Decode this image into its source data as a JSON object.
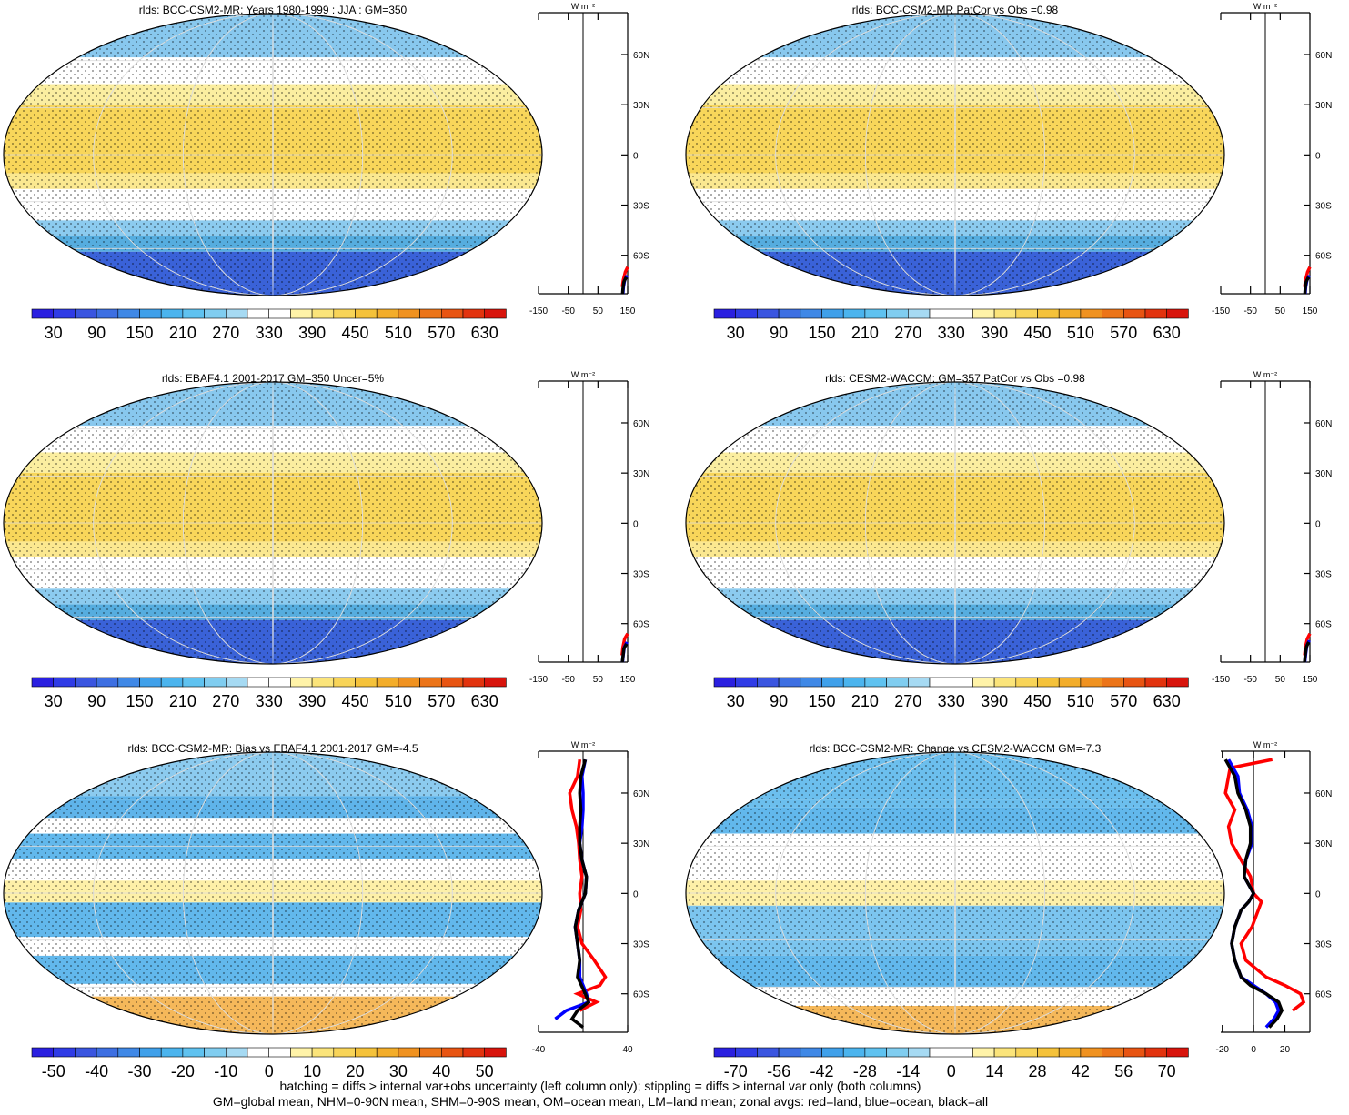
{
  "panels": [
    {
      "title": "rlds: BCC-CSM2-MR: Years 1980-1999 : JJA : GM=350",
      "map": "mean",
      "colorbar": [
        30,
        90,
        150,
        210,
        270,
        330,
        390,
        450,
        510,
        570,
        630
      ],
      "zonal": {
        "unit": "W m⁻²",
        "xlim": [
          -150,
          150
        ],
        "xticks": [
          -150,
          -50,
          50,
          150
        ],
        "ylim": [
          -83,
          85
        ],
        "yticks": [
          {
            "value": 60,
            "label": "60N"
          },
          {
            "value": 30,
            "label": "30N"
          },
          0,
          {
            "value": -30,
            "label": "30S"
          },
          {
            "value": -60,
            "label": "60S"
          }
        ],
        "series": [
          {
            "name": "land",
            "color": "#ff0000",
            "lat": [
              -67,
              -70,
              -75,
              -79
            ],
            "values": [
              150,
              142,
              135,
              132
            ]
          },
          {
            "name": "ocean",
            "color": "#0000ff",
            "lat": [
              -72,
              -75,
              -79,
              -83
            ],
            "values": [
              148,
              140,
              136,
              134
            ]
          },
          {
            "name": "all",
            "color": "#000000",
            "lat": [
              -73,
              -76,
              -80,
              -83
            ],
            "values": [
              145,
              137,
              134,
              133
            ]
          }
        ]
      }
    },
    {
      "title": "rlds: BCC-CSM2-MR PatCor vs Obs =0.98",
      "map": "mean",
      "colorbar": [
        30,
        90,
        150,
        210,
        270,
        330,
        390,
        450,
        510,
        570,
        630
      ],
      "zonal": {
        "unit": "W m⁻²",
        "xlim": [
          -150,
          150
        ],
        "xticks": [
          -150,
          -50,
          50,
          150
        ],
        "ylim": [
          -83,
          85
        ],
        "yticks": [
          {
            "value": 60,
            "label": "60N"
          },
          {
            "value": 30,
            "label": "30N"
          },
          0,
          {
            "value": -30,
            "label": "30S"
          },
          {
            "value": -60,
            "label": "60S"
          }
        ],
        "series": [
          {
            "name": "land",
            "color": "#ff0000",
            "lat": [
              -67,
              -70,
              -75,
              -79
            ],
            "values": [
              150,
              142,
              135,
              132
            ]
          },
          {
            "name": "ocean",
            "color": "#0000ff",
            "lat": [
              -72,
              -75,
              -79,
              -83
            ],
            "values": [
              148,
              140,
              136,
              134
            ]
          },
          {
            "name": "all",
            "color": "#000000",
            "lat": [
              -73,
              -76,
              -80,
              -83
            ],
            "values": [
              145,
              137,
              134,
              133
            ]
          }
        ]
      }
    },
    {
      "title": "rlds: EBAF4.1 2001-2017 GM=350 Uncer=5%",
      "map": "mean",
      "colorbar": [
        30,
        90,
        150,
        210,
        270,
        330,
        390,
        450,
        510,
        570,
        630
      ],
      "zonal": {
        "unit": "W m⁻²",
        "xlim": [
          -150,
          150
        ],
        "xticks": [
          -150,
          -50,
          50,
          150
        ],
        "ylim": [
          -83,
          85
        ],
        "yticks": [
          {
            "value": 60,
            "label": "60N"
          },
          {
            "value": 30,
            "label": "30N"
          },
          0,
          {
            "value": -30,
            "label": "30S"
          },
          {
            "value": -60,
            "label": "60S"
          }
        ],
        "series": [
          {
            "name": "land",
            "color": "#ff0000",
            "lat": [
              -66,
              -69,
              -74,
              -79
            ],
            "values": [
              150,
              140,
              134,
              131
            ]
          },
          {
            "name": "ocean",
            "color": "#0000ff",
            "lat": [
              -71,
              -74,
              -79,
              -83
            ],
            "values": [
              148,
              139,
              135,
              133
            ]
          },
          {
            "name": "all",
            "color": "#000000",
            "lat": [
              -72,
              -75,
              -80,
              -83
            ],
            "values": [
              146,
              137,
              134,
              132
            ]
          }
        ]
      }
    },
    {
      "title": "rlds: CESM2-WACCM: GM=357 PatCor vs Obs =0.98",
      "map": "mean",
      "colorbar": [
        30,
        90,
        150,
        210,
        270,
        330,
        390,
        450,
        510,
        570,
        630
      ],
      "zonal": {
        "unit": "W m⁻²",
        "xlim": [
          -150,
          150
        ],
        "xticks": [
          -150,
          -50,
          50,
          150
        ],
        "ylim": [
          -83,
          85
        ],
        "yticks": [
          {
            "value": 60,
            "label": "60N"
          },
          {
            "value": 30,
            "label": "30N"
          },
          0,
          {
            "value": -30,
            "label": "30S"
          },
          {
            "value": -60,
            "label": "60S"
          }
        ],
        "series": [
          {
            "name": "land",
            "color": "#ff0000",
            "lat": [
              -66,
              -69,
              -74,
              -79
            ],
            "values": [
              150,
              141,
              135,
              132
            ]
          },
          {
            "name": "ocean",
            "color": "#0000ff",
            "lat": [
              -70,
              -73,
              -78,
              -83
            ],
            "values": [
              148,
              140,
              136,
              133
            ]
          },
          {
            "name": "all",
            "color": "#000000",
            "lat": [
              -71,
              -74,
              -79,
              -83
            ],
            "values": [
              146,
              138,
              134,
              132
            ]
          }
        ]
      }
    },
    {
      "title": "rlds: BCC-CSM2-MR: Bias vs EBAF4.1 2001-2017 GM=-4.5",
      "map": "bias",
      "colorbar": [
        -50,
        -40,
        -30,
        -20,
        -10,
        0,
        10,
        20,
        30,
        40,
        50
      ],
      "zonal": {
        "unit": "W m⁻²",
        "xlim": [
          -40,
          40
        ],
        "xticks": [
          -40,
          40
        ],
        "ylim": [
          -83,
          85
        ],
        "yticks": [
          {
            "value": 60,
            "label": "60N"
          },
          {
            "value": 30,
            "label": "30N"
          },
          0,
          {
            "value": -30,
            "label": "30S"
          },
          {
            "value": -60,
            "label": "60S"
          }
        ],
        "series": [
          {
            "name": "land",
            "color": "#ff0000",
            "lat": [
              80,
              70,
              60,
              50,
              40,
              30,
              20,
              10,
              0,
              -10,
              -20,
              -30,
              -40,
              -50,
              -55,
              -60,
              -65,
              -70
            ],
            "values": [
              -3,
              -5,
              -12,
              -10,
              -6,
              -4,
              -3,
              -1,
              -3,
              -2,
              -5,
              -1,
              10,
              20,
              15,
              -5,
              12,
              -3
            ]
          },
          {
            "name": "ocean",
            "color": "#0000ff",
            "lat": [
              80,
              70,
              60,
              50,
              40,
              30,
              20,
              10,
              0,
              -10,
              -20,
              -30,
              -40,
              -50,
              -60,
              -65,
              -70,
              -75
            ],
            "values": [
              2,
              -1,
              0,
              0,
              -1,
              -3,
              -1,
              3,
              2,
              -4,
              -7,
              -5,
              -3,
              -3,
              3,
              5,
              -15,
              -25
            ]
          },
          {
            "name": "all",
            "color": "#000000",
            "lat": [
              80,
              70,
              60,
              50,
              40,
              30,
              20,
              10,
              0,
              -10,
              -20,
              -30,
              -40,
              -50,
              -60,
              -65,
              -70,
              -75,
              -80
            ],
            "values": [
              2,
              -2,
              -3,
              -2,
              -3,
              -3,
              -1,
              3,
              2,
              -4,
              -7,
              -5,
              -3,
              -5,
              2,
              5,
              -5,
              -10,
              0
            ]
          }
        ]
      }
    },
    {
      "title": "rlds: BCC-CSM2-MR: Change vs CESM2-WACCM GM=-7.3",
      "map": "change",
      "colorbar": [
        -70,
        -56,
        -42,
        -28,
        -14,
        0,
        14,
        28,
        42,
        56,
        70
      ],
      "zonal": {
        "unit": "W m⁻²",
        "xlim": [
          -21,
          36
        ],
        "xticks": [
          -20,
          0,
          20
        ],
        "ylim": [
          -83,
          85
        ],
        "yticks": [
          {
            "value": 60,
            "label": "60N"
          },
          {
            "value": 30,
            "label": "30N"
          },
          0,
          {
            "value": -30,
            "label": "30S"
          },
          {
            "value": -60,
            "label": "60S"
          }
        ],
        "series": [
          {
            "name": "land",
            "color": "#ff0000",
            "lat": [
              80,
              75,
              60,
              50,
              40,
              30,
              20,
              10,
              0,
              -5,
              -10,
              -20,
              -30,
              -40,
              -50,
              -55,
              -60,
              -65,
              -70
            ],
            "values": [
              12,
              -15,
              -18,
              -12,
              -16,
              -14,
              -8,
              -2,
              0,
              5,
              3,
              -1,
              -8,
              -5,
              8,
              20,
              30,
              32,
              25
            ]
          },
          {
            "name": "ocean",
            "color": "#0000ff",
            "lat": [
              80,
              70,
              60,
              50,
              40,
              30,
              20,
              10,
              0,
              -5,
              -10,
              -20,
              -30,
              -40,
              -50,
              -60,
              -65,
              -70,
              -75,
              -80
            ],
            "values": [
              -16,
              -10,
              -9,
              -4,
              -1,
              -1,
              -5,
              -6,
              0,
              -3,
              -8,
              -12,
              -14,
              -12,
              -8,
              8,
              14,
              16,
              13,
              8
            ]
          },
          {
            "name": "all",
            "color": "#000000",
            "lat": [
              80,
              70,
              60,
              50,
              40,
              30,
              20,
              10,
              0,
              -5,
              -10,
              -20,
              -30,
              -40,
              -50,
              -55,
              -60,
              -65,
              -70,
              -75,
              -80
            ],
            "values": [
              -18,
              -12,
              -10,
              -5,
              -2,
              -2,
              -5,
              -6,
              0,
              -3,
              -8,
              -12,
              -14,
              -12,
              -8,
              -2,
              8,
              16,
              18,
              15,
              10
            ]
          }
        ]
      }
    }
  ],
  "footnote": [
    "hatching = diffs > internal var+obs uncertainty (left column only); stippling = diffs > internal var only (both columns)",
    "GM=global mean, NHM=0-90N mean, SHM=0-90S mean, OM=ocean mean, LM=land mean; zonal avgs: red=land, blue=ocean, black=all"
  ]
}
